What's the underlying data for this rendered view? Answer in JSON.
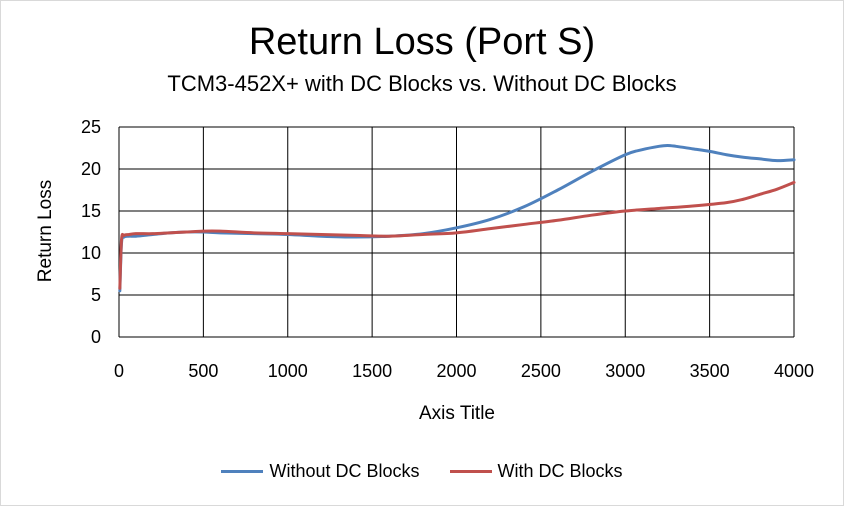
{
  "chart_data": {
    "type": "line",
    "title": "Return Loss (Port S)",
    "subtitle": "TCM3-452X+ with DC Blocks vs. Without DC Blocks",
    "xlabel": "Axis Title",
    "ylabel": "Return Loss",
    "xlim": [
      0,
      4000
    ],
    "ylim": [
      0,
      25
    ],
    "xticks": [
      0,
      500,
      1000,
      1500,
      2000,
      2500,
      3000,
      3500,
      4000
    ],
    "yticks": [
      0,
      5,
      10,
      15,
      20,
      25
    ],
    "grid": true,
    "legend_position": "bottom",
    "series": [
      {
        "name": "Without DC Blocks",
        "color": "#4f81bd",
        "x": [
          5,
          15,
          30,
          60,
          100,
          200,
          300,
          400,
          500,
          600,
          800,
          1000,
          1200,
          1400,
          1600,
          1800,
          2000,
          2200,
          2400,
          2600,
          2800,
          3000,
          3100,
          3200,
          3250,
          3300,
          3400,
          3500,
          3600,
          3700,
          3800,
          3900,
          4000
        ],
        "y": [
          5.5,
          11.2,
          11.9,
          12.0,
          12.0,
          12.2,
          12.4,
          12.5,
          12.5,
          12.4,
          12.3,
          12.2,
          12.0,
          11.9,
          12.0,
          12.3,
          13.0,
          14.0,
          15.5,
          17.5,
          19.7,
          21.7,
          22.3,
          22.7,
          22.8,
          22.7,
          22.4,
          22.1,
          21.7,
          21.4,
          21.2,
          21.0,
          21.1
        ]
      },
      {
        "name": "With DC Blocks",
        "color": "#c0504d",
        "x": [
          5,
          15,
          30,
          60,
          100,
          200,
          300,
          400,
          500,
          600,
          800,
          1000,
          1200,
          1400,
          1600,
          1800,
          2000,
          2200,
          2400,
          2600,
          2800,
          3000,
          3200,
          3400,
          3600,
          3700,
          3800,
          3900,
          4000
        ],
        "y": [
          5.8,
          11.6,
          12.1,
          12.2,
          12.3,
          12.3,
          12.4,
          12.5,
          12.6,
          12.6,
          12.4,
          12.3,
          12.2,
          12.1,
          12.0,
          12.2,
          12.4,
          12.9,
          13.4,
          13.9,
          14.5,
          15.0,
          15.3,
          15.6,
          16.0,
          16.4,
          17.0,
          17.6,
          18.4
        ]
      }
    ]
  }
}
